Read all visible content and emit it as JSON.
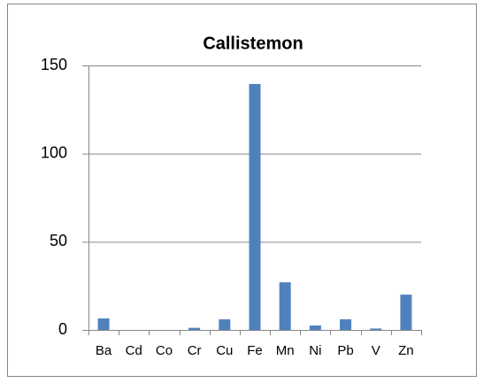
{
  "chart_data": {
    "type": "bar",
    "title": "Callistemon",
    "categories": [
      "Ba",
      "Cd",
      "Co",
      "Cr",
      "Cu",
      "Fe",
      "Mn",
      "Ni",
      "Pb",
      "V",
      "Zn"
    ],
    "values": [
      6.5,
      0,
      0,
      1.2,
      6,
      139.5,
      27,
      2.5,
      6,
      0.8,
      20
    ],
    "color": "#4f81bd",
    "ylim": [
      0,
      150
    ],
    "yticks": [
      0,
      50,
      100,
      150
    ],
    "grid": true
  }
}
